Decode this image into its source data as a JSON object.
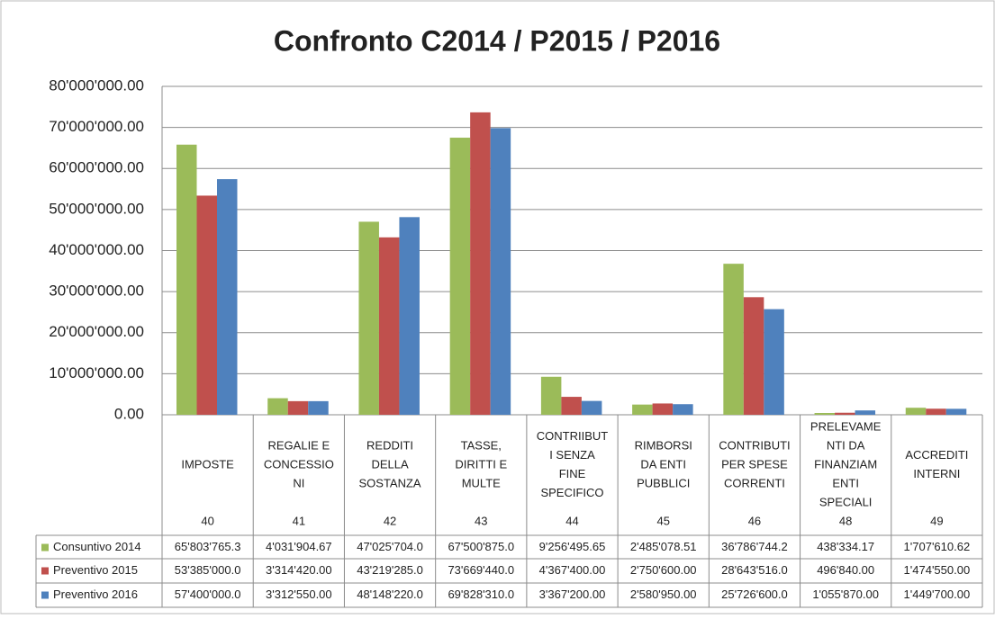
{
  "chart_data": {
    "type": "bar",
    "title": "Confronto C2014 / P2015 / P2016",
    "categories": [
      [
        "IMPOSTE"
      ],
      [
        "REGALIE E",
        "CONCESSIO",
        "NI"
      ],
      [
        "REDDITI",
        "DELLA",
        "SOSTANZA"
      ],
      [
        "TASSE,",
        "DIRITTI E",
        "MULTE"
      ],
      [
        "CONTRIIBUT",
        "I SENZA",
        "FINE",
        "SPECIFICO"
      ],
      [
        "RIMBORSI",
        "DA ENTI",
        "PUBBLICI"
      ],
      [
        "CONTRIBUTI",
        "PER SPESE",
        "CORRENTI"
      ],
      [
        "PRELEVAME",
        "NTI DA",
        "FINANZIAM",
        "ENTI",
        "SPECIALI"
      ],
      [
        "ACCREDITI",
        "INTERNI"
      ]
    ],
    "codes": [
      40,
      41,
      42,
      43,
      44,
      45,
      46,
      48,
      49
    ],
    "series": [
      {
        "name": "Consuntivo 2014",
        "color": "#9bbb59",
        "values": [
          65803765.3,
          4031904.67,
          47025704.0,
          67500875.0,
          9256495.65,
          2485078.51,
          36786744.2,
          438334.17,
          1707610.62
        ],
        "value_labels": [
          "65'803'765.3",
          "4'031'904.67",
          "47'025'704.0",
          "67'500'875.0",
          "9'256'495.65",
          "2'485'078.51",
          "36'786'744.2",
          "438'334.17",
          "1'707'610.62"
        ]
      },
      {
        "name": "Preventivo 2015",
        "color": "#c0504d",
        "values": [
          53385000.0,
          3314420.0,
          43219285.0,
          73669440.0,
          4367400.0,
          2750600.0,
          28643516.0,
          496840.0,
          1474550.0
        ],
        "value_labels": [
          "53'385'000.0",
          "3'314'420.00",
          "43'219'285.0",
          "73'669'440.0",
          "4'367'400.00",
          "2'750'600.00",
          "28'643'516.0",
          "496'840.00",
          "1'474'550.00"
        ]
      },
      {
        "name": "Preventivo 2016",
        "color": "#4f81bd",
        "values": [
          57400000.0,
          3312550.0,
          48148220.0,
          69828310.0,
          3367200.0,
          2580950.0,
          25726600.0,
          1055870.0,
          1449700.0
        ],
        "value_labels": [
          "57'400'000.0",
          "3'312'550.00",
          "48'148'220.0",
          "69'828'310.0",
          "3'367'200.00",
          "2'580'950.00",
          "25'726'600.0",
          "1'055'870.00",
          "1'449'700.00"
        ]
      }
    ],
    "ylim": [
      0,
      80000000
    ],
    "yticks": [
      {
        "value": 0,
        "label": "0.00"
      },
      {
        "value": 10000000,
        "label": "10'000'000.00"
      },
      {
        "value": 20000000,
        "label": "20'000'000.00"
      },
      {
        "value": 30000000,
        "label": "30'000'000.00"
      },
      {
        "value": 40000000,
        "label": "40'000'000.00"
      },
      {
        "value": 50000000,
        "label": "50'000'000.00"
      },
      {
        "value": 60000000,
        "label": "60'000'000.00"
      },
      {
        "value": 70000000,
        "label": "70'000'000.00"
      },
      {
        "value": 80000000,
        "label": "80'000'000.00"
      }
    ],
    "grid": true
  }
}
